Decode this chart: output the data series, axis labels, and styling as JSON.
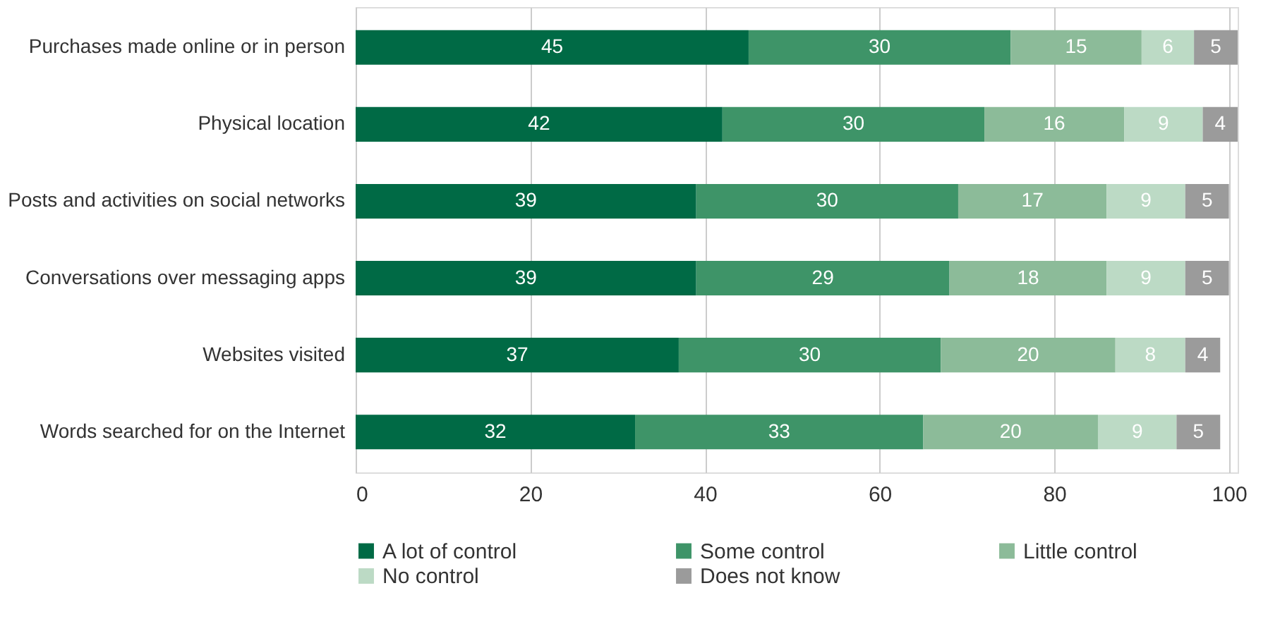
{
  "chart_data": {
    "type": "bar",
    "orientation": "horizontal",
    "stacked": true,
    "data_labels": true,
    "grid": "x",
    "legend": "bottom",
    "categories": [
      "Purchases made online or in person",
      "Physical location",
      "Posts and activities on social networks",
      "Conversations over messaging apps",
      "Websites visited",
      "Words searched for on the Internet"
    ],
    "series": [
      {
        "name": "A lot of control",
        "color": "#006a45",
        "values": [
          45,
          42,
          39,
          39,
          37,
          32
        ]
      },
      {
        "name": "Some control",
        "color": "#3e9468",
        "values": [
          30,
          30,
          30,
          29,
          30,
          33
        ]
      },
      {
        "name": "Little control",
        "color": "#8cbb99",
        "values": [
          15,
          16,
          17,
          18,
          20,
          20
        ]
      },
      {
        "name": "No control",
        "color": "#bcdac5",
        "values": [
          6,
          9,
          9,
          9,
          8,
          9
        ]
      },
      {
        "name": "Does not know",
        "color": "#9b9b9b",
        "values": [
          5,
          4,
          5,
          5,
          4,
          5
        ]
      }
    ],
    "xlim": [
      0,
      101
    ],
    "xticks": [
      0,
      20,
      40,
      60,
      80,
      100
    ]
  }
}
